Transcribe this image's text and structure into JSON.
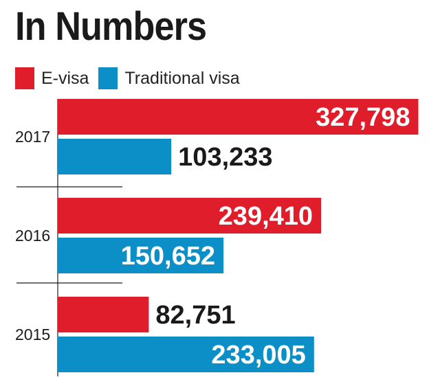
{
  "chart_data": {
    "type": "bar",
    "orientation": "horizontal",
    "title": "In Numbers",
    "categories": [
      "2017",
      "2016",
      "2015"
    ],
    "series": [
      {
        "name": "E-visa",
        "color": "#e01e2b",
        "values": [
          327798,
          239410,
          82751
        ],
        "value_labels": [
          "327,798",
          "239,410",
          "82,751"
        ]
      },
      {
        "name": "Traditional visa",
        "color": "#0b8fc6",
        "values": [
          103233,
          150652,
          233005
        ],
        "value_labels": [
          "103,233",
          "150,652",
          "233,005"
        ]
      }
    ],
    "xlim": [
      0,
      330000
    ],
    "grid": false,
    "legend": "top-left"
  }
}
